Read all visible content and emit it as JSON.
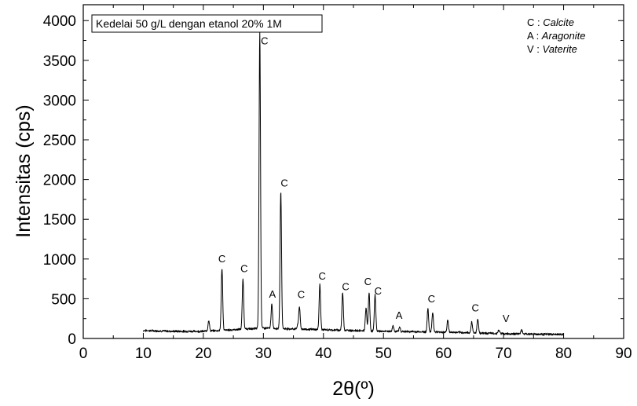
{
  "chart_data": {
    "type": "line",
    "title": "",
    "sample_label": "Kedelai 50 g/L dengan etanol 20% 1M",
    "xlabel": "2θ(º)",
    "ylabel": "Intensitas (cps)",
    "xlim": [
      0,
      90
    ],
    "ylim": [
      0,
      4200
    ],
    "xticks": [
      0,
      10,
      20,
      30,
      40,
      50,
      60,
      70,
      80,
      90
    ],
    "yticks": [
      0,
      500,
      1000,
      1500,
      2000,
      2500,
      3000,
      3500,
      4000
    ],
    "grid": false,
    "line_color": "#000000",
    "legend": {
      "placement": "top-right",
      "entries": [
        {
          "code": "C :",
          "name": "Calcite"
        },
        {
          "code": "A :",
          "name": "Aragonite"
        },
        {
          "code": "V :",
          "name": "Vaterite"
        }
      ]
    },
    "baseline": [
      [
        10,
        100
      ],
      [
        15,
        90
      ],
      [
        20,
        90
      ],
      [
        25,
        110
      ],
      [
        30,
        130
      ],
      [
        35,
        120
      ],
      [
        40,
        110
      ],
      [
        45,
        100
      ],
      [
        50,
        90
      ],
      [
        55,
        85
      ],
      [
        60,
        80
      ],
      [
        65,
        70
      ],
      [
        70,
        60
      ],
      [
        75,
        55
      ],
      [
        80,
        50
      ]
    ],
    "peaks": [
      {
        "x": 20.9,
        "y": 230,
        "w": 0.12
      },
      {
        "x": 23.1,
        "y": 880,
        "w": 0.12
      },
      {
        "x": 26.6,
        "y": 750,
        "w": 0.12
      },
      {
        "x": 29.4,
        "y": 3850,
        "w": 0.12
      },
      {
        "x": 31.4,
        "y": 430,
        "w": 0.12
      },
      {
        "x": 32.9,
        "y": 1850,
        "w": 0.12
      },
      {
        "x": 35.7,
        "y": 160,
        "w": 0.12
      },
      {
        "x": 36.0,
        "y": 400,
        "w": 0.12
      },
      {
        "x": 39.4,
        "y": 680,
        "w": 0.12
      },
      {
        "x": 43.2,
        "y": 580,
        "w": 0.12
      },
      {
        "x": 47.1,
        "y": 380,
        "w": 0.12
      },
      {
        "x": 47.6,
        "y": 580,
        "w": 0.12
      },
      {
        "x": 48.6,
        "y": 550,
        "w": 0.12
      },
      {
        "x": 51.6,
        "y": 160,
        "w": 0.12
      },
      {
        "x": 52.7,
        "y": 140,
        "w": 0.12
      },
      {
        "x": 57.4,
        "y": 370,
        "w": 0.12
      },
      {
        "x": 58.2,
        "y": 330,
        "w": 0.12
      },
      {
        "x": 60.7,
        "y": 230,
        "w": 0.12
      },
      {
        "x": 64.7,
        "y": 210,
        "w": 0.12
      },
      {
        "x": 65.7,
        "y": 250,
        "w": 0.12
      },
      {
        "x": 69.2,
        "y": 100,
        "w": 0.15
      },
      {
        "x": 73.0,
        "y": 100,
        "w": 0.15
      }
    ],
    "annotations": [
      {
        "text": "C",
        "x": 23.1,
        "y": 960
      },
      {
        "text": "C",
        "x": 26.8,
        "y": 835
      },
      {
        "text": "C",
        "x": 30.2,
        "y": 3700
      },
      {
        "text": "A",
        "x": 31.5,
        "y": 515
      },
      {
        "text": "C",
        "x": 33.5,
        "y": 1910
      },
      {
        "text": "C",
        "x": 36.3,
        "y": 510
      },
      {
        "text": "C",
        "x": 39.8,
        "y": 740
      },
      {
        "text": "C",
        "x": 43.7,
        "y": 610
      },
      {
        "text": "C",
        "x": 47.4,
        "y": 670
      },
      {
        "text": "C",
        "x": 49.1,
        "y": 555
      },
      {
        "text": "A",
        "x": 52.6,
        "y": 245
      },
      {
        "text": "C",
        "x": 58.0,
        "y": 455
      },
      {
        "text": "C",
        "x": 65.3,
        "y": 340
      },
      {
        "text": "V",
        "x": 70.4,
        "y": 210
      }
    ]
  }
}
